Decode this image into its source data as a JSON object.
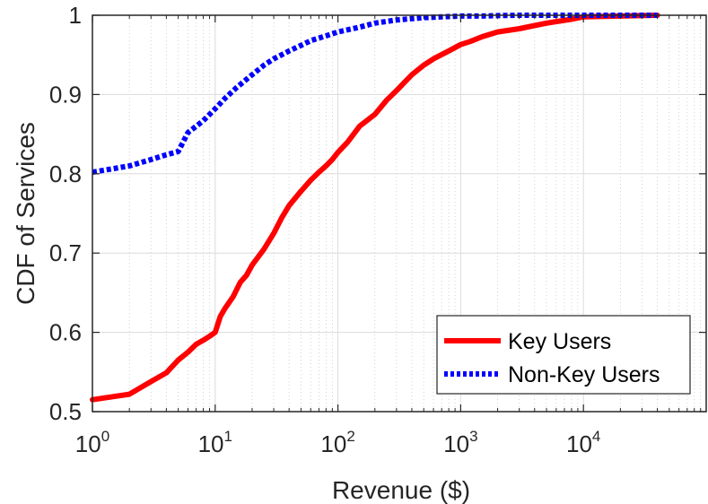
{
  "chart_data": {
    "type": "line",
    "xlabel": "Revenue ($)",
    "ylabel": "CDF of Services",
    "x_scale": "log",
    "xlim": [
      1,
      100000
    ],
    "ylim": [
      0.5,
      1.0
    ],
    "x_ticks": [
      {
        "base": "10",
        "exp": "0",
        "value": 1
      },
      {
        "base": "10",
        "exp": "1",
        "value": 10
      },
      {
        "base": "10",
        "exp": "2",
        "value": 100
      },
      {
        "base": "10",
        "exp": "3",
        "value": 1000
      },
      {
        "base": "10",
        "exp": "4",
        "value": 10000
      }
    ],
    "y_ticks": [
      {
        "label": "0.5",
        "value": 0.5
      },
      {
        "label": "0.6",
        "value": 0.6
      },
      {
        "label": "0.7",
        "value": 0.7
      },
      {
        "label": "0.8",
        "value": 0.8
      },
      {
        "label": "0.9",
        "value": 0.9
      },
      {
        "label": "1",
        "value": 1.0
      }
    ],
    "grid": true,
    "legend_position": "bottom-right",
    "series": [
      {
        "name": "Key Users",
        "color": "#ff0000",
        "style": "solid",
        "x": [
          1,
          2,
          3,
          4,
          5,
          6,
          7,
          8,
          9,
          10,
          11,
          12,
          14,
          16,
          18,
          20,
          25,
          30,
          35,
          40,
          50,
          60,
          70,
          80,
          90,
          100,
          120,
          150,
          200,
          250,
          300,
          400,
          500,
          600,
          800,
          1000,
          1200,
          1500,
          2000,
          3000,
          5000,
          8000,
          10000,
          20000,
          40000
        ],
        "y": [
          0.515,
          0.522,
          0.538,
          0.549,
          0.565,
          0.575,
          0.585,
          0.59,
          0.595,
          0.6,
          0.62,
          0.63,
          0.645,
          0.663,
          0.672,
          0.685,
          0.705,
          0.725,
          0.745,
          0.76,
          0.778,
          0.792,
          0.802,
          0.81,
          0.818,
          0.827,
          0.84,
          0.86,
          0.875,
          0.893,
          0.905,
          0.925,
          0.937,
          0.945,
          0.955,
          0.963,
          0.967,
          0.973,
          0.979,
          0.983,
          0.99,
          0.995,
          0.998,
          0.999,
          1.0
        ]
      },
      {
        "name": "Non-Key Users",
        "color": "#0000ff",
        "style": "dotted",
        "x": [
          1,
          2,
          3,
          4,
          5,
          6,
          7,
          8,
          10,
          12,
          15,
          20,
          25,
          30,
          40,
          50,
          60,
          80,
          100,
          150,
          200,
          300,
          500,
          700,
          1000,
          1500,
          2000,
          3000,
          5000,
          10000,
          20000,
          40000
        ],
        "y": [
          0.802,
          0.81,
          0.818,
          0.824,
          0.828,
          0.852,
          0.86,
          0.867,
          0.882,
          0.895,
          0.909,
          0.925,
          0.937,
          0.945,
          0.955,
          0.962,
          0.968,
          0.974,
          0.979,
          0.985,
          0.99,
          0.994,
          0.997,
          0.998,
          0.999,
          0.999,
          0.9995,
          1.0,
          1.0,
          1.0,
          1.0,
          1.0
        ]
      }
    ]
  }
}
